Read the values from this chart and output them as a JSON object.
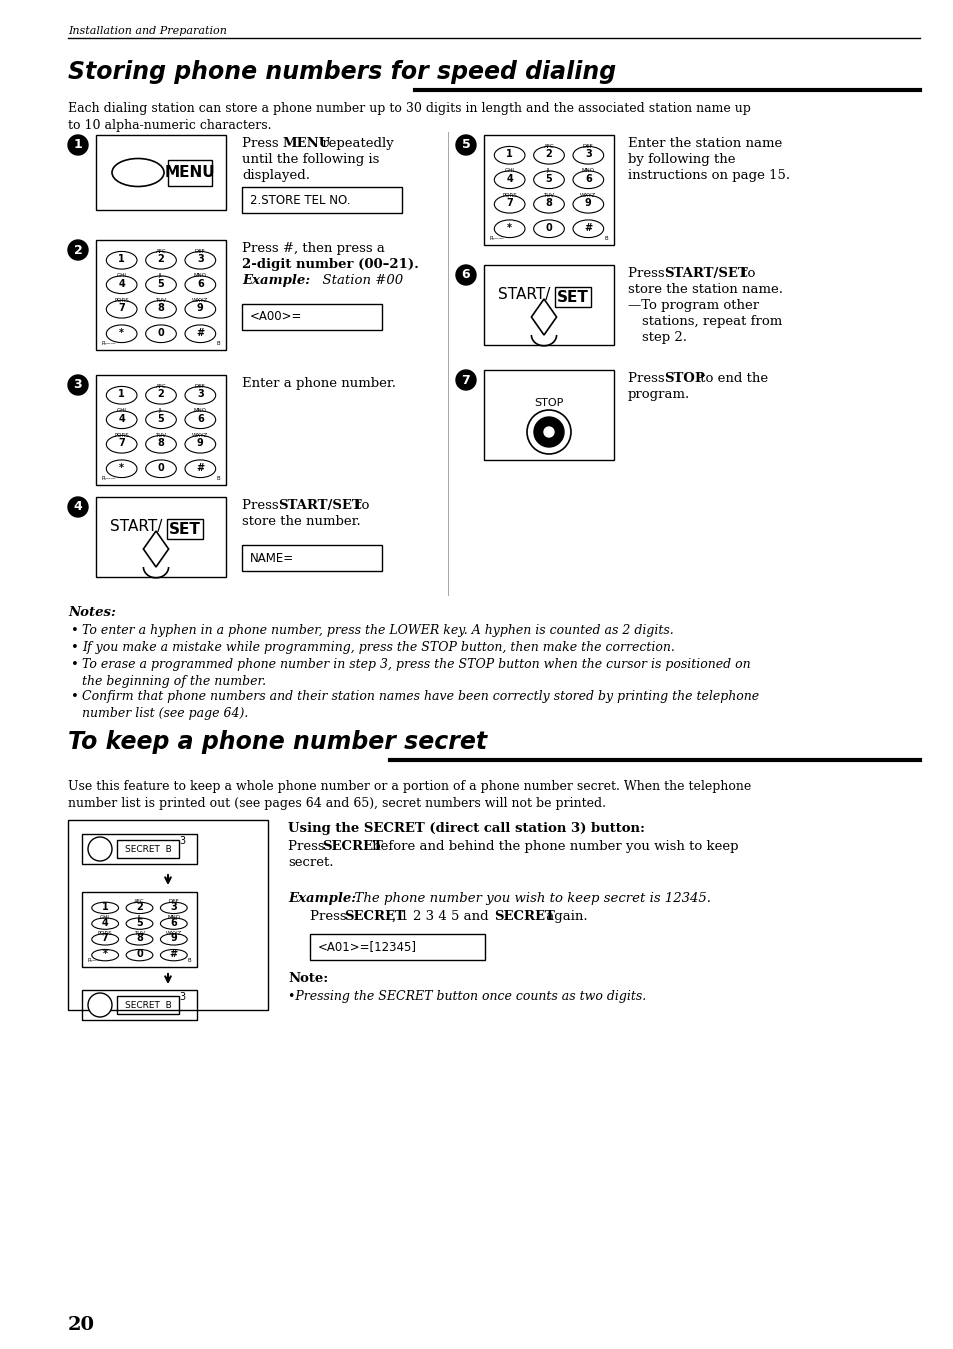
{
  "bg_color": "#ffffff",
  "header_text": "Installation and Preparation",
  "section1_title": "Storing phone numbers for speed dialing",
  "section1_intro": "Each dialing station can store a phone number up to 30 digits in length and the associated station name up\nto 10 alpha-numeric characters.",
  "notes_title": "Notes:",
  "notes": [
    "To enter a hyphen in a phone number, press the LOWER key. A hyphen is counted as 2 digits.",
    "If you make a mistake while programming, press the STOP button, then make the correction.",
    "To erase a programmed phone number in step 3, press the STOP button when the cursor is positioned on\nthe beginning of the number.",
    "Confirm that phone numbers and their station names have been correctly stored by printing the telephone\nnumber list (see page 64)."
  ],
  "section2_title": "To keep a phone number secret",
  "section2_intro": "Use this feature to keep a whole phone number or a portion of a phone number secret. When the telephone\nnumber list is printed out (see pages 64 and 65), secret numbers will not be printed.",
  "secret_display": "<A01>=[12345]",
  "note2": "Pressing the SECRET button once counts as two digits.",
  "page_number": "20"
}
